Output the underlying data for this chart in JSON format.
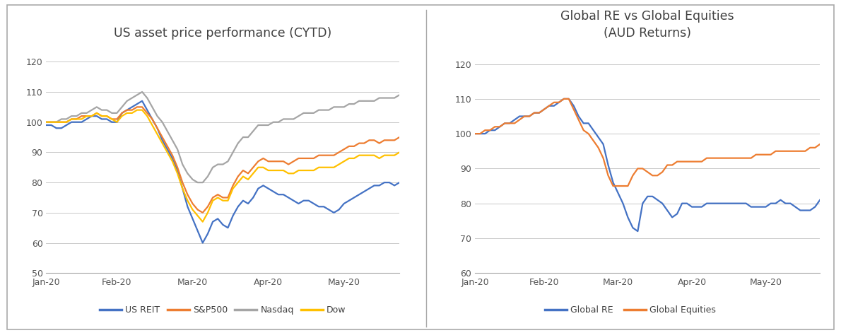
{
  "chart1_title": "US asset price performance (CYTD)",
  "chart2_title": "Global RE vs Global Equities\n(AUD Returns)",
  "chart1_ylim": [
    50,
    125
  ],
  "chart2_ylim": [
    60,
    125
  ],
  "chart1_yticks": [
    50,
    60,
    70,
    80,
    90,
    100,
    110,
    120
  ],
  "chart2_yticks": [
    60,
    70,
    80,
    90,
    100,
    110,
    120
  ],
  "colors": {
    "us_reit": "#4472C4",
    "sp500": "#ED7D31",
    "nasdaq": "#A5A5A5",
    "dow": "#FFC000",
    "global_re": "#4472C4",
    "global_eq": "#ED7D31"
  },
  "legend1": [
    "US REIT",
    "S&P500",
    "Nasdaq",
    "Dow"
  ],
  "legend2": [
    "Global RE",
    "Global Equities"
  ],
  "background": "#F2F2F2",
  "plot_bg": "#FFFFFF",
  "grid_color": "#C8C8C8",
  "x_labels": [
    "Jan-20",
    "Feb-20",
    "Mar-20",
    "Apr-20",
    "May-20"
  ],
  "tick_indices": [
    0,
    14,
    29,
    44,
    59
  ],
  "n_points": 71,
  "us_reit": [
    99,
    99,
    98,
    98,
    99,
    100,
    100,
    100,
    101,
    102,
    102,
    101,
    101,
    100,
    100,
    103,
    104,
    105,
    106,
    107,
    104,
    101,
    98,
    94,
    91,
    88,
    84,
    78,
    72,
    68,
    64,
    60,
    63,
    67,
    68,
    66,
    65,
    69,
    72,
    74,
    73,
    75,
    78,
    79,
    78,
    77,
    76,
    76,
    75,
    74,
    73,
    74,
    74,
    73,
    72,
    72,
    71,
    70,
    71,
    73,
    74,
    75,
    76,
    77,
    78,
    79,
    79,
    80,
    80,
    79,
    80
  ],
  "sp500": [
    100,
    100,
    100,
    100,
    100,
    101,
    101,
    102,
    102,
    102,
    103,
    102,
    102,
    101,
    101,
    103,
    104,
    104,
    105,
    105,
    103,
    101,
    98,
    95,
    92,
    89,
    85,
    80,
    76,
    73,
    71,
    70,
    72,
    75,
    76,
    75,
    75,
    79,
    82,
    84,
    83,
    85,
    87,
    88,
    87,
    87,
    87,
    87,
    86,
    87,
    88,
    88,
    88,
    88,
    89,
    89,
    89,
    89,
    90,
    91,
    92,
    92,
    93,
    93,
    94,
    94,
    93,
    94,
    94,
    94,
    95
  ],
  "nasdaq": [
    100,
    100,
    100,
    101,
    101,
    102,
    102,
    103,
    103,
    104,
    105,
    104,
    104,
    103,
    103,
    105,
    107,
    108,
    109,
    110,
    108,
    105,
    102,
    100,
    97,
    94,
    91,
    86,
    83,
    81,
    80,
    80,
    82,
    85,
    86,
    86,
    87,
    90,
    93,
    95,
    95,
    97,
    99,
    99,
    99,
    100,
    100,
    101,
    101,
    101,
    102,
    103,
    103,
    103,
    104,
    104,
    104,
    105,
    105,
    105,
    106,
    106,
    107,
    107,
    107,
    107,
    108,
    108,
    108,
    108,
    109
  ],
  "dow": [
    100,
    100,
    100,
    100,
    100,
    101,
    101,
    101,
    102,
    102,
    103,
    102,
    102,
    101,
    100,
    102,
    103,
    103,
    104,
    104,
    102,
    99,
    96,
    93,
    90,
    87,
    83,
    78,
    74,
    71,
    69,
    67,
    70,
    74,
    75,
    74,
    74,
    78,
    80,
    82,
    81,
    83,
    85,
    85,
    84,
    84,
    84,
    84,
    83,
    83,
    84,
    84,
    84,
    84,
    85,
    85,
    85,
    85,
    86,
    87,
    88,
    88,
    89,
    89,
    89,
    89,
    88,
    89,
    89,
    89,
    90
  ],
  "global_re": [
    100,
    100,
    100,
    101,
    101,
    102,
    103,
    103,
    104,
    105,
    105,
    105,
    106,
    106,
    107,
    108,
    108,
    109,
    110,
    110,
    108,
    105,
    103,
    103,
    101,
    99,
    97,
    91,
    86,
    83,
    80,
    76,
    73,
    72,
    80,
    82,
    82,
    81,
    80,
    78,
    76,
    77,
    80,
    80,
    79,
    79,
    79,
    80,
    80,
    80,
    80,
    80,
    80,
    80,
    80,
    80,
    79,
    79,
    79,
    79,
    80,
    80,
    81,
    80,
    80,
    79,
    78,
    78,
    78,
    79,
    81
  ],
  "global_eq": [
    100,
    100,
    101,
    101,
    102,
    102,
    103,
    103,
    103,
    104,
    105,
    105,
    106,
    106,
    107,
    108,
    109,
    109,
    110,
    110,
    107,
    104,
    101,
    100,
    98,
    96,
    93,
    88,
    85,
    85,
    85,
    85,
    88,
    90,
    90,
    89,
    88,
    88,
    89,
    91,
    91,
    92,
    92,
    92,
    92,
    92,
    92,
    93,
    93,
    93,
    93,
    93,
    93,
    93,
    93,
    93,
    93,
    94,
    94,
    94,
    94,
    95,
    95,
    95,
    95,
    95,
    95,
    95,
    96,
    96,
    97
  ]
}
